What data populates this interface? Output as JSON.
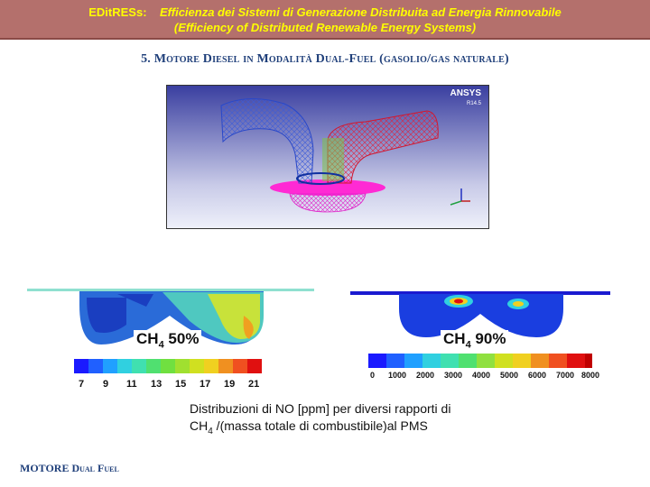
{
  "header": {
    "title_prefix": "EDitRESs:",
    "title_italic": "Efficienza dei Sistemi di Generazione Distribuita ad Energia Rinnovabile",
    "title_line2": "(Efficiency of Distributed Renewable Energy Systems)"
  },
  "subtitle": "5.  Motore Diesel in Modalità Dual-Fuel (gasolio/gas naturale)",
  "mesh_view": {
    "logo": "ANSYS",
    "version": "R14.5"
  },
  "left_plot": {
    "label_main": "CH",
    "label_sub": "4",
    "label_value": " 50%",
    "ticks": [
      "7",
      "9",
      "11",
      "13",
      "15",
      "17",
      "19",
      "21"
    ]
  },
  "right_plot": {
    "label_main": "CH",
    "label_sub": "4",
    "label_value": " 90%",
    "ticks": [
      "0",
      "1000",
      "2000",
      "3000",
      "4000",
      "5000",
      "6000",
      "7000",
      "8000"
    ]
  },
  "colors": {
    "banner_bg": "#b4706c",
    "banner_text": "#ffff00",
    "title_blue": "#1f3f7a"
  },
  "caption": {
    "line1": "Distribuzioni di NO [ppm]  per diversi rapporti  di",
    "line2_a": "CH",
    "line2_sub": "4",
    "line2_b": " /(massa totale di combustibile)al PMS"
  },
  "footer": "MOTORE Dual Fuel"
}
